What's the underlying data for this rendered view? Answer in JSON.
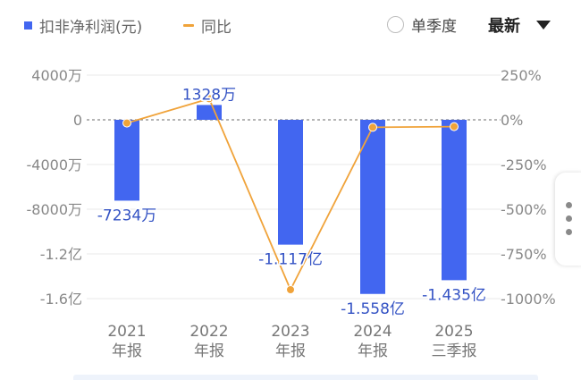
{
  "legend": {
    "bar_label": "扣非净利润(元)",
    "line_label": "同比",
    "bar_color": "#4266f0",
    "line_color": "#f0a33a"
  },
  "controls": {
    "single_quarter_label": "单季度",
    "sort_label": "最新",
    "sort_icon": "triangle-down-icon",
    "single_quarter_checked": false
  },
  "chart_data": {
    "type": "bar",
    "categories": [
      [
        "2021",
        "年报"
      ],
      [
        "2022",
        "年报"
      ],
      [
        "2023",
        "年报"
      ],
      [
        "2024",
        "年报"
      ],
      [
        "2025",
        "三季报"
      ]
    ],
    "series": [
      {
        "name": "扣非净利润(元)",
        "type": "bar",
        "axis": "left",
        "values": [
          -72340000,
          13280000,
          -111700000,
          -155800000,
          -143500000
        ],
        "labels": [
          "-7234万",
          "1328万",
          "-1.117亿",
          "-1.558亿",
          "-1.435亿"
        ]
      },
      {
        "name": "同比",
        "type": "line",
        "axis": "right",
        "values": [
          -18,
          118,
          -950,
          -42,
          -38
        ]
      }
    ],
    "y_left": {
      "ticks": [
        40000000,
        0,
        -40000000,
        -80000000,
        -120000000,
        -160000000
      ],
      "tick_labels": [
        "4000万",
        "0",
        "-4000万",
        "-8000万",
        "-1.2亿",
        "-1.6亿"
      ]
    },
    "y_right": {
      "ticks": [
        250,
        0,
        -250,
        -500,
        -750,
        -1000
      ],
      "tick_labels": [
        "250%",
        "0%",
        "-250%",
        "-500%",
        "-750%",
        "-1000%"
      ]
    },
    "zero_line": "dashed",
    "grid": true,
    "legend_position": "top-left"
  }
}
